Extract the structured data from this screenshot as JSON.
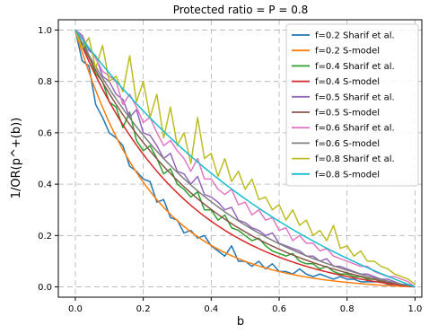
{
  "chart_data": {
    "type": "line",
    "title": "Protected ratio = P = 0.8",
    "xlabel": "b",
    "ylabel": "1/OR(p^+(b))",
    "xlim": [
      -0.05,
      1.02
    ],
    "ylim": [
      -0.04,
      1.04
    ],
    "xticks": [
      0.0,
      0.2,
      0.4,
      0.6,
      0.8,
      1.0
    ],
    "xtick_labels": [
      "0.0",
      "0.2",
      "0.4",
      "0.6",
      "0.8",
      "1.0"
    ],
    "yticks": [
      0.0,
      0.2,
      0.4,
      0.6,
      0.8,
      1.0
    ],
    "ytick_labels": [
      "0.0",
      "0.2",
      "0.4",
      "0.6",
      "0.8",
      "1.0"
    ],
    "grid": true,
    "grid_style": "dashed",
    "legend_position": "top-right",
    "series": [
      {
        "name": "f=0.2 Sharif et al.",
        "color": "#1f77b4",
        "kind": "noisy",
        "x": [
          0.0,
          0.02,
          0.04,
          0.06,
          0.08,
          0.1,
          0.12,
          0.14,
          0.16,
          0.18,
          0.2,
          0.22,
          0.24,
          0.26,
          0.28,
          0.3,
          0.32,
          0.34,
          0.36,
          0.38,
          0.4,
          0.42,
          0.44,
          0.46,
          0.48,
          0.5,
          0.52,
          0.54,
          0.56,
          0.58,
          0.6,
          0.62,
          0.64,
          0.66,
          0.68,
          0.7,
          0.72,
          0.74,
          0.76,
          0.78,
          0.8,
          0.82,
          0.84,
          0.86,
          0.88,
          0.9,
          0.92,
          0.94,
          0.96,
          0.98,
          1.0
        ],
        "y": [
          1.0,
          0.88,
          0.86,
          0.71,
          0.66,
          0.6,
          0.58,
          0.55,
          0.47,
          0.45,
          0.42,
          0.41,
          0.33,
          0.34,
          0.27,
          0.26,
          0.21,
          0.22,
          0.19,
          0.2,
          0.16,
          0.14,
          0.12,
          0.16,
          0.1,
          0.1,
          0.08,
          0.1,
          0.07,
          0.09,
          0.06,
          0.06,
          0.05,
          0.07,
          0.05,
          0.04,
          0.05,
          0.04,
          0.03,
          0.04,
          0.03,
          0.03,
          0.02,
          0.02,
          0.02,
          0.02,
          0.01,
          0.01,
          0.01,
          0.01,
          0.0
        ]
      },
      {
        "name": "f=0.2 S-model",
        "color": "#ff7f0e",
        "kind": "smooth",
        "k": 4.4
      },
      {
        "name": "f=0.4 Sharif et al.",
        "color": "#2ca02c",
        "kind": "noisy",
        "x": [
          0.0,
          0.02,
          0.04,
          0.06,
          0.08,
          0.1,
          0.12,
          0.14,
          0.16,
          0.18,
          0.2,
          0.22,
          0.24,
          0.26,
          0.28,
          0.3,
          0.32,
          0.34,
          0.36,
          0.38,
          0.4,
          0.42,
          0.44,
          0.46,
          0.48,
          0.5,
          0.52,
          0.54,
          0.56,
          0.58,
          0.6,
          0.62,
          0.64,
          0.66,
          0.68,
          0.7,
          0.72,
          0.74,
          0.76,
          0.78,
          0.8,
          0.82,
          0.84,
          0.86,
          0.88,
          0.9,
          0.92,
          0.94,
          0.96,
          0.98,
          1.0
        ],
        "y": [
          1.0,
          0.97,
          0.9,
          0.83,
          0.8,
          0.72,
          0.7,
          0.62,
          0.68,
          0.57,
          0.53,
          0.55,
          0.5,
          0.44,
          0.46,
          0.4,
          0.38,
          0.35,
          0.37,
          0.3,
          0.3,
          0.26,
          0.28,
          0.23,
          0.22,
          0.2,
          0.18,
          0.19,
          0.16,
          0.14,
          0.13,
          0.12,
          0.13,
          0.1,
          0.09,
          0.09,
          0.07,
          0.08,
          0.06,
          0.05,
          0.05,
          0.04,
          0.04,
          0.03,
          0.03,
          0.02,
          0.02,
          0.01,
          0.01,
          0.01,
          0.0
        ]
      },
      {
        "name": "f=0.4 S-model",
        "color": "#d62728",
        "kind": "smooth",
        "k": 3.1
      },
      {
        "name": "f=0.5 Sharif et al.",
        "color": "#9467bd",
        "kind": "noisy",
        "x": [
          0.0,
          0.02,
          0.04,
          0.06,
          0.08,
          0.1,
          0.12,
          0.14,
          0.16,
          0.18,
          0.2,
          0.22,
          0.24,
          0.26,
          0.28,
          0.3,
          0.32,
          0.34,
          0.36,
          0.38,
          0.4,
          0.42,
          0.44,
          0.46,
          0.48,
          0.5,
          0.52,
          0.54,
          0.56,
          0.58,
          0.6,
          0.62,
          0.64,
          0.66,
          0.68,
          0.7,
          0.72,
          0.74,
          0.76,
          0.78,
          0.8,
          0.82,
          0.84,
          0.86,
          0.88,
          0.9,
          0.92,
          0.94,
          0.96,
          0.98,
          1.0
        ],
        "y": [
          1.0,
          0.98,
          0.92,
          0.9,
          0.82,
          0.8,
          0.75,
          0.73,
          0.66,
          0.69,
          0.6,
          0.59,
          0.55,
          0.5,
          0.52,
          0.45,
          0.44,
          0.4,
          0.43,
          0.36,
          0.35,
          0.33,
          0.3,
          0.31,
          0.26,
          0.25,
          0.23,
          0.22,
          0.2,
          0.21,
          0.17,
          0.16,
          0.15,
          0.14,
          0.12,
          0.12,
          0.1,
          0.11,
          0.08,
          0.08,
          0.07,
          0.06,
          0.05,
          0.05,
          0.04,
          0.03,
          0.03,
          0.02,
          0.01,
          0.01,
          0.0
        ]
      },
      {
        "name": "f=0.5 S-model",
        "color": "#8c564b",
        "kind": "smooth",
        "k": 2.6
      },
      {
        "name": "f=0.6 Sharif et al.",
        "color": "#e377c2",
        "kind": "noisy",
        "x": [
          0.0,
          0.02,
          0.04,
          0.06,
          0.08,
          0.1,
          0.12,
          0.14,
          0.16,
          0.18,
          0.2,
          0.22,
          0.24,
          0.26,
          0.28,
          0.3,
          0.32,
          0.34,
          0.36,
          0.38,
          0.4,
          0.42,
          0.44,
          0.46,
          0.48,
          0.5,
          0.52,
          0.54,
          0.56,
          0.58,
          0.6,
          0.62,
          0.64,
          0.66,
          0.68,
          0.7,
          0.72,
          0.74,
          0.76,
          0.78,
          0.8,
          0.82,
          0.84,
          0.86,
          0.88,
          0.9,
          0.92,
          0.94,
          0.96,
          0.98,
          1.0
        ],
        "y": [
          1.0,
          0.97,
          0.93,
          0.89,
          0.84,
          0.82,
          0.8,
          0.71,
          0.75,
          0.7,
          0.64,
          0.66,
          0.6,
          0.55,
          0.57,
          0.53,
          0.5,
          0.45,
          0.5,
          0.42,
          0.42,
          0.38,
          0.36,
          0.38,
          0.32,
          0.33,
          0.28,
          0.3,
          0.26,
          0.27,
          0.22,
          0.23,
          0.18,
          0.2,
          0.17,
          0.17,
          0.14,
          0.15,
          0.12,
          0.11,
          0.1,
          0.09,
          0.08,
          0.08,
          0.06,
          0.05,
          0.04,
          0.04,
          0.03,
          0.02,
          0.0
        ]
      },
      {
        "name": "f=0.6 S-model",
        "color": "#7f7f7f",
        "kind": "smooth",
        "k": 2.3
      },
      {
        "name": "f=0.8 Sharif et al.",
        "color": "#bcbd22",
        "kind": "noisy",
        "x": [
          0.0,
          0.02,
          0.04,
          0.06,
          0.08,
          0.1,
          0.12,
          0.14,
          0.16,
          0.18,
          0.2,
          0.22,
          0.24,
          0.26,
          0.28,
          0.3,
          0.32,
          0.34,
          0.36,
          0.38,
          0.4,
          0.42,
          0.44,
          0.46,
          0.48,
          0.5,
          0.52,
          0.54,
          0.56,
          0.58,
          0.6,
          0.62,
          0.64,
          0.66,
          0.68,
          0.7,
          0.72,
          0.74,
          0.76,
          0.78,
          0.8,
          0.82,
          0.84,
          0.86,
          0.88,
          0.9,
          0.92,
          0.94,
          0.96,
          0.98,
          1.0
        ],
        "y": [
          1.0,
          0.93,
          0.97,
          0.85,
          0.94,
          0.8,
          0.82,
          0.76,
          0.9,
          0.72,
          0.8,
          0.66,
          0.75,
          0.58,
          0.7,
          0.55,
          0.6,
          0.48,
          0.66,
          0.5,
          0.52,
          0.43,
          0.5,
          0.41,
          0.45,
          0.38,
          0.42,
          0.34,
          0.35,
          0.3,
          0.32,
          0.26,
          0.3,
          0.24,
          0.26,
          0.2,
          0.22,
          0.18,
          0.24,
          0.15,
          0.16,
          0.12,
          0.14,
          0.1,
          0.1,
          0.08,
          0.07,
          0.05,
          0.04,
          0.03,
          0.01
        ]
      },
      {
        "name": "f=0.8 S-model",
        "color": "#17becf",
        "kind": "smooth",
        "k": 1.3
      }
    ]
  }
}
